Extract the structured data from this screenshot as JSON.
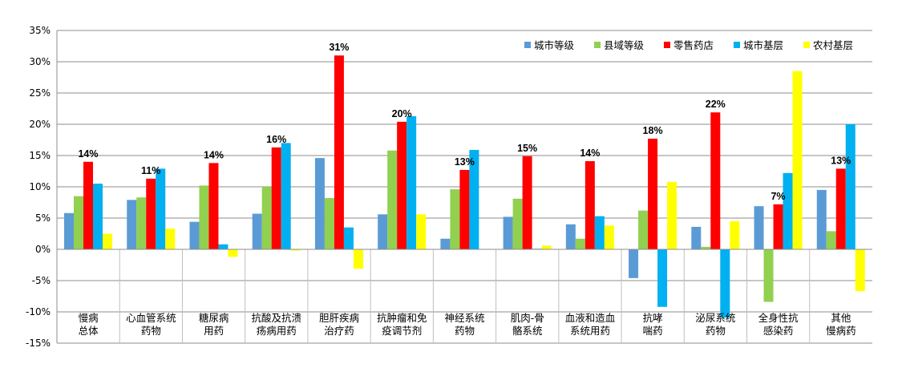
{
  "chart_data": {
    "type": "bar",
    "title": "",
    "xlabel": "",
    "ylabel": "",
    "ylim": [
      -15,
      35
    ],
    "y_ticks": [
      "35%",
      "30%",
      "25%",
      "20%",
      "15%",
      "10%",
      "5%",
      "0%",
      "-5%",
      "-10%",
      "-15%"
    ],
    "y_tick_values": [
      35,
      30,
      25,
      20,
      15,
      10,
      5,
      0,
      -5,
      -10,
      -15
    ],
    "grid": true,
    "legend_position": "top-right",
    "categories": [
      [
        "慢病",
        "总体"
      ],
      [
        "心血管系统",
        "药物"
      ],
      [
        "糖尿病",
        "用药"
      ],
      [
        "抗酸及抗溃",
        "疡病用药"
      ],
      [
        "胆肝疾病",
        "治疗药"
      ],
      [
        "抗肿瘤和免",
        "疫调节剂"
      ],
      [
        "神经系统",
        "药物"
      ],
      [
        "肌肉-骨",
        "骼系统"
      ],
      [
        "血液和造血",
        "系统用药"
      ],
      [
        "抗哮",
        "喘药"
      ],
      [
        "泌尿系统",
        "药物"
      ],
      [
        "全身性抗",
        "感染药"
      ],
      [
        "其他",
        "慢病药"
      ]
    ],
    "series": [
      {
        "name": "城市等级",
        "color": "#5b9bd5",
        "values": [
          5.8,
          7.9,
          4.4,
          5.7,
          14.6,
          5.6,
          1.7,
          5.2,
          4.0,
          -4.6,
          3.6,
          6.9,
          9.5
        ]
      },
      {
        "name": "县域等级",
        "color": "#92d050",
        "values": [
          8.5,
          8.3,
          10.2,
          10.0,
          8.2,
          15.8,
          9.6,
          8.1,
          1.7,
          6.2,
          0.4,
          -8.4,
          2.9
        ]
      },
      {
        "name": "零售药店",
        "color": "#ff0000",
        "values": [
          14.0,
          11.3,
          13.8,
          16.3,
          31.0,
          20.4,
          12.7,
          14.9,
          14.1,
          17.7,
          21.9,
          7.2,
          12.9
        ]
      },
      {
        "name": "城市基层",
        "color": "#00b0f0",
        "values": [
          10.5,
          12.9,
          0.8,
          17.0,
          3.5,
          21.3,
          15.9,
          0.1,
          5.3,
          -9.2,
          -10.9,
          12.2,
          20.0
        ]
      },
      {
        "name": "农村基层",
        "color": "#ffff00",
        "values": [
          2.5,
          3.3,
          -1.2,
          -0.2,
          -3.1,
          5.6,
          0.0,
          0.6,
          3.8,
          10.8,
          4.5,
          28.5,
          -6.7
        ]
      }
    ],
    "data_labels": [
      "14%",
      "11%",
      "14%",
      "16%",
      "31%",
      "20%",
      "13%",
      "15%",
      "14%",
      "18%",
      "22%",
      "7%",
      "13%"
    ],
    "data_label_series": "零售药店"
  }
}
